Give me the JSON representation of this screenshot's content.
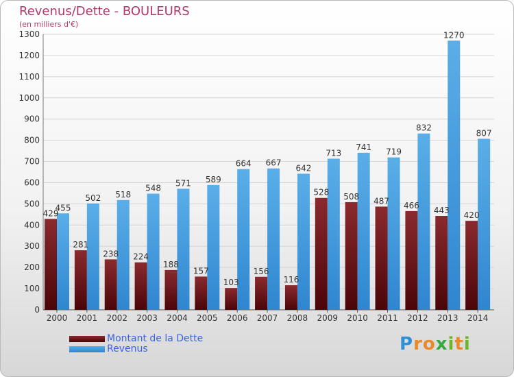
{
  "title": "Revenus/Dette - BOULEURS",
  "subtitle": "(en milliers d'€)",
  "legend": {
    "dette_label": "Montant de la Dette",
    "revenus_label": "Revenus"
  },
  "logo": {
    "text": "Proxiti",
    "letters": [
      "P",
      "r",
      "o",
      "x",
      "i",
      "t",
      "i"
    ]
  },
  "colors": {
    "title": "#b0386d",
    "dette": "#7a1418",
    "revenus": "#4aa2e0",
    "legend_text": "#3b63e0"
  },
  "chart_data": {
    "type": "bar",
    "categories": [
      "2000",
      "2001",
      "2002",
      "2003",
      "2004",
      "2005",
      "2006",
      "2007",
      "2008",
      "2009",
      "2010",
      "2011",
      "2012",
      "2013",
      "2014"
    ],
    "series": [
      {
        "name": "Montant de la Dette",
        "values": [
          429,
          281,
          238,
          224,
          188,
          157,
          103,
          156,
          116,
          528,
          508,
          487,
          466,
          443,
          420
        ]
      },
      {
        "name": "Revenus",
        "values": [
          455,
          502,
          518,
          548,
          571,
          589,
          664,
          667,
          642,
          713,
          741,
          719,
          832,
          1270,
          807
        ]
      }
    ],
    "ylim": [
      0,
      1300
    ],
    "yticks": [
      0,
      100,
      200,
      300,
      400,
      500,
      600,
      700,
      800,
      900,
      1000,
      1100,
      1200,
      1300
    ],
    "grid": true
  }
}
